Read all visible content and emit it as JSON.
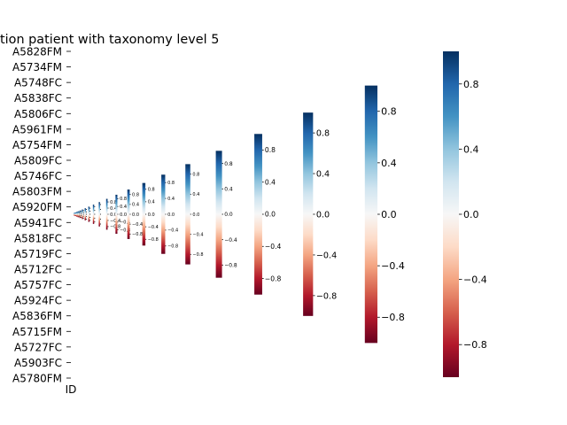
{
  "chart_data": {
    "type": "heatmap",
    "title": "tion patient with taxonomy level 5",
    "xlabel": "ID",
    "ylabel": "",
    "row_labels": [
      "A5828FM",
      "A5734FM",
      "A5748FC",
      "A5838FC",
      "A5806FC",
      "A5961FM",
      "A5754FM",
      "A5809FC",
      "A5746FC",
      "A5803FM",
      "A5920FM",
      "A5941FC",
      "A5818FC",
      "A5719FC",
      "A5712FC",
      "A5757FC",
      "A5924FC",
      "A5836FM",
      "A5715FM",
      "A5727FC",
      "A5903FC",
      "A5780FM"
    ],
    "colormap": "RdBu_r",
    "colorbar": {
      "vmin": -1.0,
      "vmax": 1.0,
      "ticks": [
        -0.8,
        -0.4,
        0.0,
        0.4,
        0.8
      ],
      "tick_labels": [
        "−0.8",
        "−0.4",
        "0.0",
        "0.4",
        "0.8"
      ],
      "count_visible": 22
    },
    "grid": false
  },
  "colors": {
    "cmap_stops": [
      "#67001f",
      "#b2182b",
      "#d6604d",
      "#f4a582",
      "#fddbc7",
      "#f7f7f7",
      "#d1e5f0",
      "#92c5de",
      "#4393c3",
      "#2166ac",
      "#053061"
    ]
  }
}
